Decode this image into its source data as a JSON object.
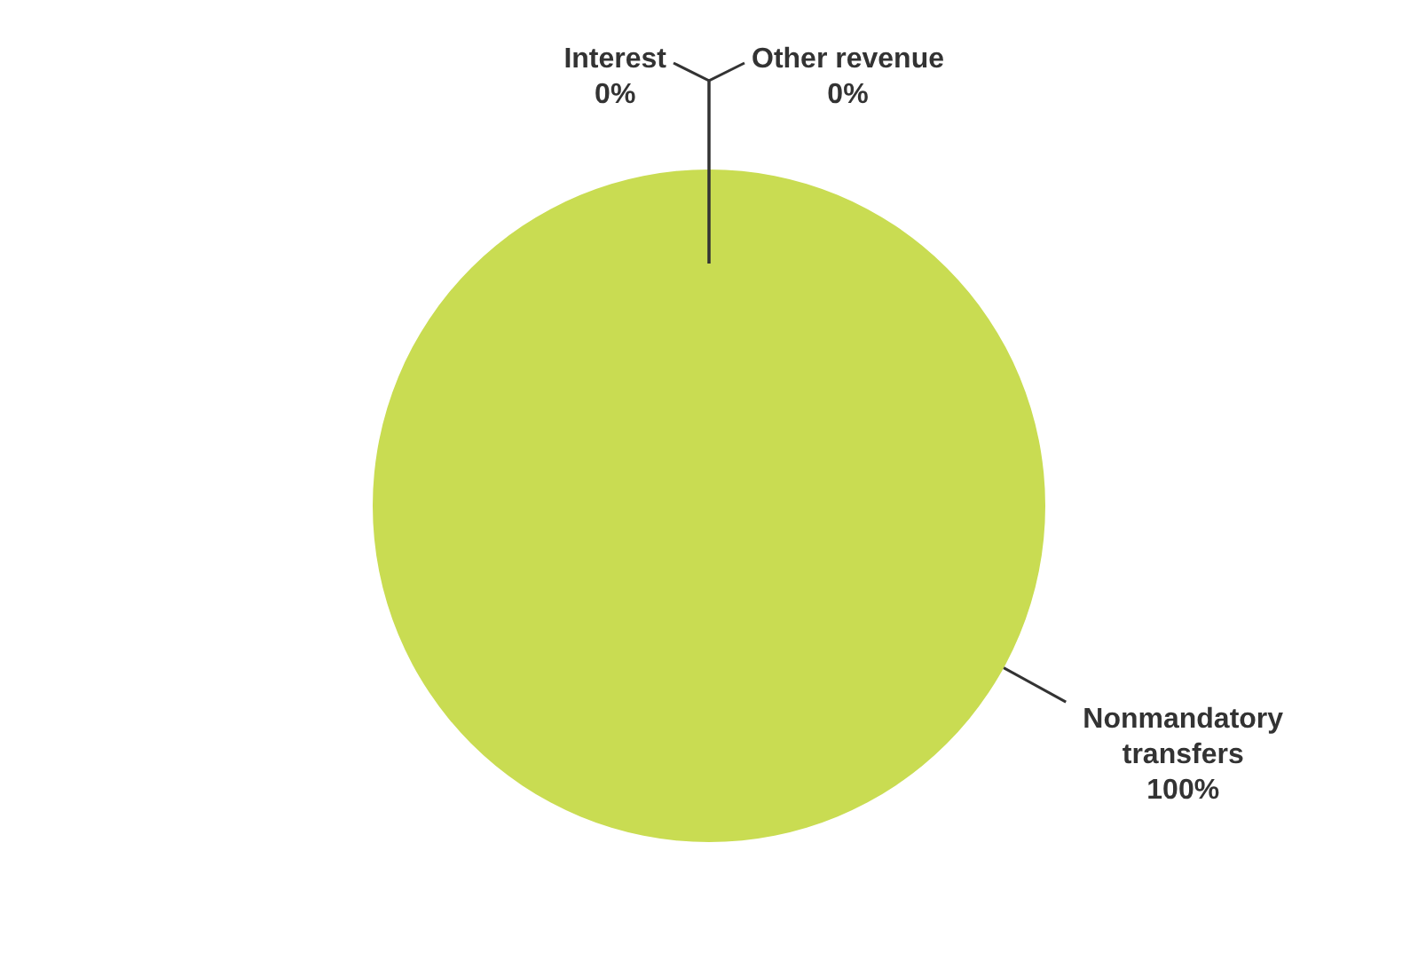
{
  "chart_data": {
    "type": "pie",
    "categories": [
      "Interest",
      "Other revenue",
      "Nonmandatory transfers"
    ],
    "values": [
      0,
      0,
      100
    ],
    "colors": [
      "#5b9bd5",
      "#c0504d",
      "#c9dc52"
    ],
    "value_labels": [
      "0%",
      "0%",
      "100%"
    ],
    "legend": false
  }
}
